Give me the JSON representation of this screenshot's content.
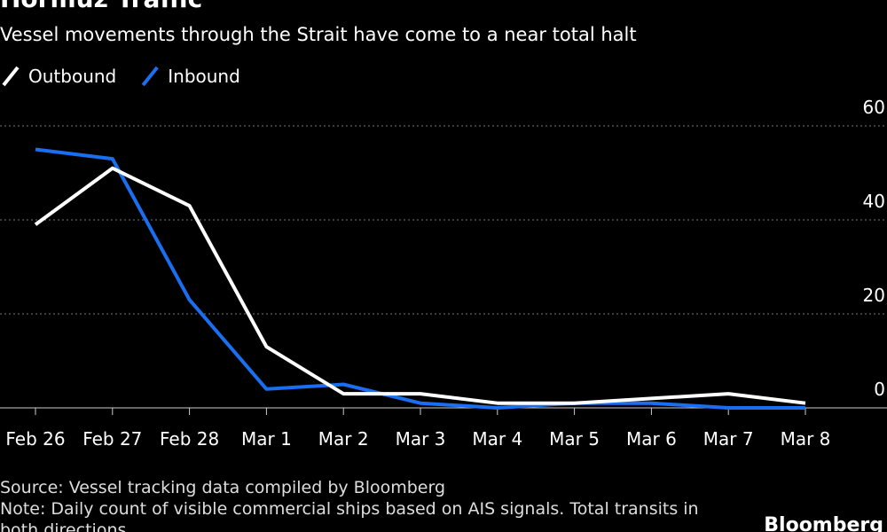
{
  "chart_data": {
    "type": "line",
    "title": "Hormuz Traffic",
    "subtitle": "Vessel movements through the Strait have come to a near total halt",
    "categories": [
      "Feb 26",
      "Feb 27",
      "Feb 28",
      "Mar 1",
      "Mar 2",
      "Mar 3",
      "Mar 4",
      "Mar 5",
      "Mar 6",
      "Mar 7",
      "Mar 8"
    ],
    "series": [
      {
        "name": "Outbound",
        "color": "#ffffff",
        "values": [
          39,
          51,
          43,
          13,
          3,
          3,
          1,
          1,
          2,
          3,
          1
        ]
      },
      {
        "name": "Inbound",
        "color": "#1a6ff0",
        "values": [
          55,
          53,
          23,
          4,
          5,
          1,
          0,
          1,
          1,
          0,
          0
        ]
      }
    ],
    "ylim": [
      0,
      60
    ],
    "yticks": [
      0,
      20,
      40,
      60
    ],
    "grid": true,
    "source": "Source: Vessel tracking data compiled by Bloomberg",
    "note": "Note: Daily count of visible commercial ships based on AIS signals. Total transits in both directions.",
    "brand": "Bloomberg"
  }
}
